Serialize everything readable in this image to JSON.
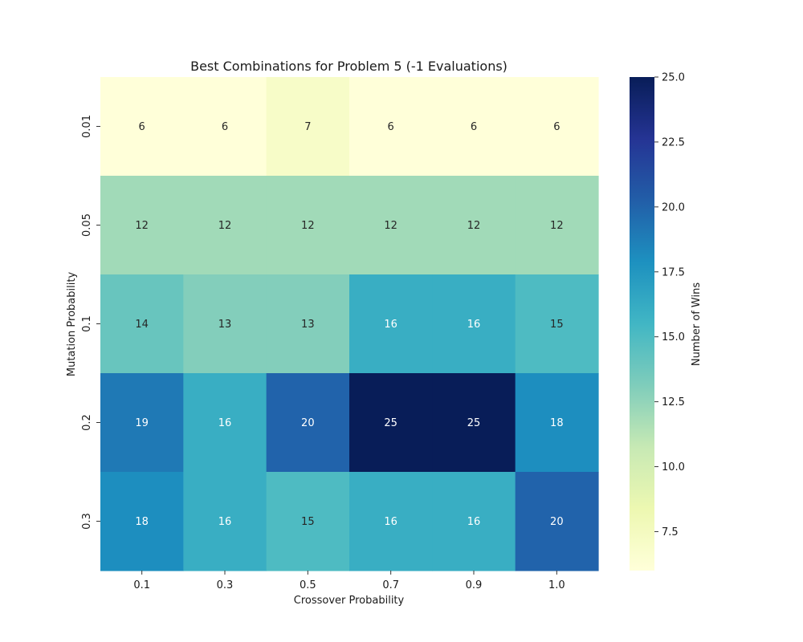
{
  "chart_data": {
    "type": "heatmap",
    "title": "Best Combinations for Problem 5 (-1 Evaluations)",
    "xlabel": "Crossover Probability",
    "ylabel": "Mutation Probability",
    "x_categories": [
      "0.1",
      "0.3",
      "0.5",
      "0.7",
      "0.9",
      "1.0"
    ],
    "y_categories": [
      "0.01",
      "0.05",
      "0.1",
      "0.2",
      "0.3"
    ],
    "values": [
      [
        6,
        6,
        7,
        6,
        6,
        6
      ],
      [
        12,
        12,
        12,
        12,
        12,
        12
      ],
      [
        14,
        13,
        13,
        16,
        16,
        15
      ],
      [
        19,
        16,
        20,
        25,
        25,
        18
      ],
      [
        18,
        16,
        15,
        16,
        16,
        20
      ]
    ],
    "annotations": true,
    "colormap": "YlGnBu",
    "vmin": 6,
    "vmax": 25,
    "colorbar": {
      "label": "Number of Wins",
      "ticks": [
        "7.5",
        "10.0",
        "12.5",
        "15.0",
        "17.5",
        "20.0",
        "22.5",
        "25.0"
      ]
    },
    "grid": false,
    "legend": "none"
  }
}
